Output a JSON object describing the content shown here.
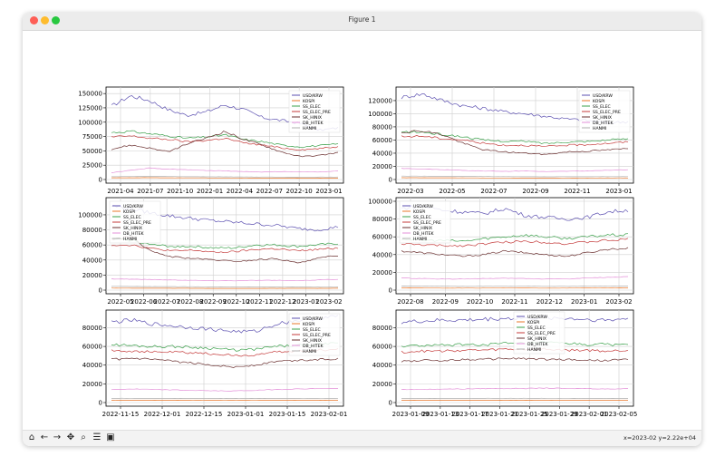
{
  "window": {
    "title": "Figure 1"
  },
  "toolbar": {
    "buttons": [
      {
        "name": "home-button",
        "icon": "home-icon",
        "glyph": "⌂"
      },
      {
        "name": "back-button",
        "icon": "arrow-left-icon",
        "glyph": "←"
      },
      {
        "name": "forward-button",
        "icon": "arrow-right-icon",
        "glyph": "→"
      },
      {
        "name": "pan-button",
        "icon": "move-icon",
        "glyph": "✥"
      },
      {
        "name": "zoom-button",
        "icon": "magnifier-icon",
        "glyph": "⌕"
      },
      {
        "name": "configure-button",
        "icon": "sliders-icon",
        "glyph": "☰"
      },
      {
        "name": "save-button",
        "icon": "floppy-icon",
        "glyph": "▣"
      }
    ],
    "coords": "x=2023-02 y=2.22e+04"
  },
  "colors": {
    "USD/KRW": "#5b4fb0",
    "KOSPI": "#e8772a",
    "SS_ELEC": "#3aa04a",
    "SS_ELEC_PRE": "#c43a3a",
    "SK_HINIX": "#6a2f2f",
    "DB_HITEK": "#e38fd8",
    "HANMI": "#b0b0b0"
  },
  "chart_data": [
    {
      "type": "line",
      "x_ticks": [
        "2021-04",
        "2021-07",
        "2021-10",
        "2022-01",
        "2022-04",
        "2022-07",
        "2022-10",
        "2023-01"
      ],
      "y_ticks": [
        "0",
        "25000",
        "50000",
        "75000",
        "100000",
        "125000",
        "150000"
      ],
      "ylim": [
        0,
        155000
      ],
      "legend": [
        "USD/KRW",
        "KOSPI",
        "SS_ELEC",
        "SS_ELEC_PRE",
        "SK_HINIX",
        "DB_HITEK",
        "HANMI"
      ],
      "series": [
        {
          "name": "USD/KRW",
          "values": [
            128000,
            146000,
            138000,
            122000,
            112000,
            118000,
            130000,
            122000,
            108000,
            103000,
            98000,
            86000,
            90000
          ]
        },
        {
          "name": "KOSPI",
          "values": [
            3000,
            3100,
            3200,
            3000,
            2900,
            2800,
            2700,
            2600,
            2400,
            2300,
            2300,
            2400,
            2400
          ]
        },
        {
          "name": "SS_ELEC",
          "values": [
            82000,
            84000,
            80000,
            76000,
            72000,
            74000,
            78000,
            70000,
            66000,
            60000,
            57000,
            59000,
            62000
          ]
        },
        {
          "name": "SS_ELEC_PRE",
          "values": [
            74000,
            76000,
            72000,
            70000,
            66000,
            68000,
            72000,
            64000,
            60000,
            55000,
            52000,
            54000,
            57000
          ]
        },
        {
          "name": "SK_HINIX",
          "values": [
            53000,
            60000,
            55000,
            48000,
            62000,
            72000,
            84000,
            70000,
            60000,
            48000,
            40000,
            42000,
            47000
          ]
        },
        {
          "name": "DB_HITEK",
          "values": [
            12000,
            16000,
            20000,
            18000,
            17000,
            16000,
            15000,
            14000,
            13000,
            14000,
            13000,
            13000,
            15000
          ]
        },
        {
          "name": "HANMI",
          "values": [
            5000,
            5200,
            5500,
            5300,
            5000,
            4800,
            4700,
            4500,
            4400,
            4300,
            4200,
            4300,
            4400
          ]
        }
      ]
    },
    {
      "type": "line",
      "x_ticks": [
        "2022-03",
        "2022-05",
        "2022-07",
        "2022-09",
        "2022-11",
        "2023-01"
      ],
      "y_ticks": [
        "0",
        "20000",
        "40000",
        "60000",
        "80000",
        "100000",
        "120000"
      ],
      "ylim": [
        0,
        135000
      ],
      "legend": [
        "USD/KRW",
        "KOSPI",
        "SS_ELEC",
        "SS_ELEC_PRE",
        "SK_HINIX",
        "DB_HITEK",
        "HANMI"
      ],
      "series": [
        {
          "name": "USD/KRW",
          "values": [
            125000,
            130000,
            120000,
            112000,
            108000,
            103000,
            100000,
            96000,
            92000,
            90000,
            86000,
            88000
          ]
        },
        {
          "name": "KOSPI",
          "values": [
            2700,
            2700,
            2600,
            2500,
            2400,
            2300,
            2300,
            2200,
            2300,
            2300,
            2400,
            2400
          ]
        },
        {
          "name": "SS_ELEC",
          "values": [
            72000,
            72000,
            68000,
            65000,
            60000,
            58000,
            58000,
            55000,
            57000,
            58000,
            60000,
            62000
          ]
        },
        {
          "name": "SS_ELEC_PRE",
          "values": [
            65000,
            66000,
            62000,
            60000,
            55000,
            52000,
            52000,
            50000,
            52000,
            53000,
            55000,
            57000
          ]
        },
        {
          "name": "SK_HINIX",
          "values": [
            72000,
            74000,
            68000,
            55000,
            45000,
            42000,
            40000,
            38000,
            42000,
            43000,
            45000,
            47000
          ]
        },
        {
          "name": "DB_HITEK",
          "values": [
            17000,
            16000,
            15000,
            14000,
            13000,
            12500,
            13000,
            12000,
            12500,
            13000,
            14000,
            15000
          ]
        },
        {
          "name": "HANMI",
          "values": [
            5200,
            5100,
            5000,
            4800,
            4600,
            4400,
            4300,
            4200,
            4300,
            4300,
            4400,
            4400
          ]
        }
      ]
    },
    {
      "type": "line",
      "x_ticks": [
        "2022-05",
        "2022-06",
        "2022-07",
        "2022-08",
        "2022-09",
        "2022-10",
        "2022-11",
        "2022-12",
        "2023-01",
        "2023-02"
      ],
      "y_ticks": [
        "0",
        "20000",
        "40000",
        "60000",
        "80000",
        "100000"
      ],
      "ylim": [
        0,
        118000
      ],
      "legend": [
        "USD/KRW",
        "KOSPI",
        "SS_ELEC",
        "SS_ELEC_PRE",
        "SK_HINIX",
        "DB_HITEK",
        "HANMI"
      ],
      "series": [
        {
          "name": "USD/KRW",
          "values": [
            112000,
            108000,
            102000,
            98000,
            95000,
            92000,
            90000,
            88000,
            86000,
            82000,
            80000,
            84000
          ]
        },
        {
          "name": "KOSPI",
          "values": [
            2700,
            2600,
            2500,
            2500,
            2400,
            2300,
            2300,
            2300,
            2400,
            2400,
            2400,
            2500
          ]
        },
        {
          "name": "SS_ELEC",
          "values": [
            68000,
            66000,
            60000,
            58000,
            58000,
            56000,
            56000,
            60000,
            60000,
            58000,
            60000,
            62000
          ]
        },
        {
          "name": "SS_ELEC_PRE",
          "values": [
            60000,
            60000,
            55000,
            52000,
            53000,
            50000,
            51000,
            54000,
            55000,
            52000,
            54000,
            56000
          ]
        },
        {
          "name": "SK_HINIX",
          "values": [
            68000,
            70000,
            50000,
            44000,
            42000,
            40000,
            38000,
            40000,
            42000,
            36000,
            42000,
            46000
          ]
        },
        {
          "name": "DB_HITEK",
          "values": [
            15000,
            14500,
            14000,
            13500,
            13000,
            12500,
            12500,
            13000,
            13000,
            12500,
            13500,
            14500
          ]
        },
        {
          "name": "HANMI",
          "values": [
            5000,
            4900,
            4700,
            4600,
            4500,
            4400,
            4300,
            4300,
            4300,
            4300,
            4400,
            4400
          ]
        }
      ]
    },
    {
      "type": "line",
      "x_ticks": [
        "2022-08",
        "2022-09",
        "2022-10",
        "2022-11",
        "2022-12",
        "2023-01",
        "2023-02"
      ],
      "y_ticks": [
        "0",
        "20000",
        "40000",
        "60000",
        "80000",
        "100000"
      ],
      "ylim": [
        0,
        100000
      ],
      "legend": [
        "USD/KRW",
        "KOSPI",
        "SS_ELEC",
        "SS_ELEC_PRE",
        "SK_HINIX",
        "DB_HITEK",
        "HANMI"
      ],
      "series": [
        {
          "name": "USD/KRW",
          "values": [
            92000,
            95000,
            90000,
            88000,
            86000,
            92000,
            84000,
            82000,
            80000,
            82000,
            88000,
            90000
          ]
        },
        {
          "name": "KOSPI",
          "values": [
            2500,
            2400,
            2300,
            2300,
            2300,
            2400,
            2400,
            2300,
            2300,
            2400,
            2400,
            2500
          ]
        },
        {
          "name": "SS_ELEC",
          "values": [
            58000,
            56000,
            56000,
            55000,
            58000,
            60000,
            62000,
            60000,
            58000,
            60000,
            62000,
            62000
          ]
        },
        {
          "name": "SS_ELEC_PRE",
          "values": [
            52000,
            51000,
            50000,
            50000,
            52000,
            54000,
            55000,
            54000,
            52000,
            54000,
            56000,
            57000
          ]
        },
        {
          "name": "SK_HINIX",
          "values": [
            44000,
            42000,
            40000,
            38000,
            40000,
            44000,
            42000,
            40000,
            38000,
            42000,
            46000,
            47000
          ]
        },
        {
          "name": "DB_HITEK",
          "values": [
            13500,
            13000,
            12500,
            12500,
            13000,
            13500,
            13000,
            12500,
            12500,
            13500,
            14500,
            15000
          ]
        },
        {
          "name": "HANMI",
          "values": [
            4600,
            4500,
            4400,
            4300,
            4300,
            4400,
            4400,
            4300,
            4300,
            4400,
            4400,
            4500
          ]
        }
      ]
    },
    {
      "type": "line",
      "x_ticks": [
        "2022-11-15",
        "2022-12-01",
        "2022-12-15",
        "2023-01-01",
        "2023-01-15",
        "2023-02-01"
      ],
      "y_ticks": [
        "0",
        "20000",
        "40000",
        "60000",
        "80000"
      ],
      "ylim": [
        0,
        95000
      ],
      "legend": [
        "USD/KRW",
        "KOSPI",
        "SS_ELEC",
        "SS_ELEC_PRE",
        "SK_HINIX",
        "DB_HITEK",
        "HANMI"
      ],
      "series": [
        {
          "name": "USD/KRW",
          "values": [
            86000,
            88000,
            84000,
            82000,
            80000,
            78000,
            76000,
            76000,
            84000,
            88000,
            90000,
            92000
          ]
        },
        {
          "name": "KOSPI",
          "values": [
            2400,
            2400,
            2400,
            2400,
            2300,
            2300,
            2300,
            2300,
            2400,
            2400,
            2400,
            2500
          ]
        },
        {
          "name": "SS_ELEC",
          "values": [
            62000,
            61000,
            60000,
            60000,
            59000,
            58000,
            56000,
            57000,
            60000,
            61000,
            62000,
            63000
          ]
        },
        {
          "name": "SS_ELEC_PRE",
          "values": [
            56000,
            55000,
            54000,
            54000,
            53000,
            52000,
            50000,
            51000,
            54000,
            55000,
            56000,
            57000
          ]
        },
        {
          "name": "SK_HINIX",
          "values": [
            46000,
            47000,
            46000,
            44000,
            42000,
            40000,
            38000,
            40000,
            44000,
            45000,
            46000,
            47000
          ]
        },
        {
          "name": "DB_HITEK",
          "values": [
            14000,
            14500,
            14000,
            13500,
            13000,
            12500,
            12500,
            13000,
            14000,
            14500,
            15000,
            15000
          ]
        },
        {
          "name": "HANMI",
          "values": [
            4500,
            4500,
            4400,
            4400,
            4400,
            4300,
            4300,
            4300,
            4400,
            4400,
            4500,
            4500
          ]
        }
      ]
    },
    {
      "type": "line",
      "x_ticks": [
        "2023-01-09",
        "2023-01-13",
        "2023-01-17",
        "2023-01-21",
        "2023-01-25",
        "2023-01-29",
        "2023-02-01",
        "2023-02-05"
      ],
      "y_ticks": [
        "0",
        "20000",
        "40000",
        "60000",
        "80000"
      ],
      "ylim": [
        0,
        95000
      ],
      "legend": [
        "USD/KRW",
        "KOSPI",
        "SS_ELEC",
        "SS_ELEC_PRE",
        "SK_HINIX",
        "DB_HITEK",
        "HANMI"
      ],
      "series": [
        {
          "name": "USD/KRW",
          "values": [
            86000,
            87000,
            88000,
            88000,
            89000,
            90000,
            90000,
            91000,
            90000,
            89000,
            88000,
            90000
          ]
        },
        {
          "name": "KOSPI",
          "values": [
            2400,
            2400,
            2400,
            2400,
            2400,
            2400,
            2500,
            2500,
            2500,
            2500,
            2400,
            2400
          ]
        },
        {
          "name": "SS_ELEC",
          "values": [
            60000,
            61000,
            61000,
            62000,
            62000,
            63000,
            63000,
            64000,
            63000,
            62000,
            62000,
            62000
          ]
        },
        {
          "name": "SS_ELEC_PRE",
          "values": [
            54000,
            55000,
            55000,
            56000,
            56000,
            57000,
            57000,
            57000,
            56000,
            56000,
            55000,
            56000
          ]
        },
        {
          "name": "SK_HINIX",
          "values": [
            44000,
            45000,
            45000,
            46000,
            46000,
            47000,
            47000,
            46000,
            46000,
            45000,
            45000,
            46000
          ]
        },
        {
          "name": "DB_HITEK",
          "values": [
            14000,
            14000,
            14500,
            14500,
            15000,
            15000,
            15000,
            15500,
            15000,
            15000,
            14500,
            15000
          ]
        },
        {
          "name": "HANMI",
          "values": [
            4400,
            4400,
            4400,
            4500,
            4500,
            4500,
            4500,
            4500,
            4500,
            4400,
            4400,
            4400
          ]
        }
      ]
    }
  ]
}
